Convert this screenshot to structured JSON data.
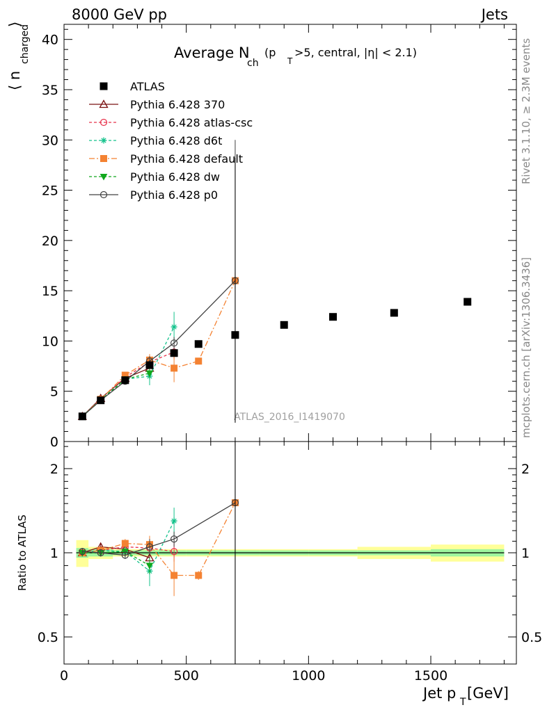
{
  "header": {
    "left": "8000 GeV pp",
    "right": "Jets"
  },
  "side_labels": {
    "rivet": "Rivet 3.1.10, ≥ 2.3M events",
    "mcplots": "mcplots.cern.ch [arXiv:1306.3436]"
  },
  "watermark": "ATLAS_2016_I1419070",
  "chart_data": {
    "type": "scatter",
    "title": {
      "main": "Average N",
      "sub": "ch",
      "rest_a": " (p",
      "sub2": "T",
      "rest_b": ">5, central, |η| < 2.1)"
    },
    "ylabel_main": {
      "main": "⟨ n",
      "sub": "charged",
      "tail": " ⟩"
    },
    "ylabel_ratio": "Ratio to ATLAS",
    "xlabel": {
      "main": "Jet p",
      "sub": "T",
      "tail": " [GeV]"
    },
    "xlim": [
      0,
      1850
    ],
    "ylim_main": [
      0,
      41.5
    ],
    "ylim_ratio": [
      0.4,
      2.5
    ],
    "ratio_log": true,
    "x_ticks": [
      0,
      500,
      1000,
      1500
    ],
    "y_ticks_main": [
      0,
      5,
      10,
      15,
      20,
      25,
      30,
      35,
      40
    ],
    "y_ticks_ratio": [
      0.5,
      1,
      2
    ],
    "data": {
      "name": "ATLAS",
      "x": [
        75,
        150,
        250,
        350,
        450,
        550,
        700,
        900,
        1100,
        1350,
        1650
      ],
      "xlo": [
        50,
        100,
        200,
        300,
        400,
        500,
        600,
        800,
        1000,
        1200,
        1500
      ],
      "xhi": [
        100,
        200,
        300,
        400,
        500,
        600,
        800,
        1000,
        1200,
        1500,
        1800
      ],
      "y": [
        2.5,
        4.1,
        6.1,
        7.6,
        8.8,
        9.7,
        10.6,
        11.6,
        12.4,
        12.8,
        13.9
      ],
      "ratio_stat": [
        0.04,
        0.03,
        0.02,
        0.02,
        0.02,
        0.02,
        0.02,
        0.02,
        0.02,
        0.02,
        0.03
      ],
      "ratio_tot": [
        0.11,
        0.05,
        0.03,
        0.03,
        0.03,
        0.03,
        0.03,
        0.03,
        0.03,
        0.05,
        0.07
      ]
    },
    "series": [
      {
        "name": "Pythia 6.428 370",
        "color": "#7a1010",
        "marker": "triangle-open",
        "dash": "",
        "x": [
          75,
          150,
          250,
          350
        ],
        "y": [
          2.5,
          4.3,
          6.3,
          7.3
        ],
        "err": [
          0.1,
          0.2,
          0.3,
          0.6
        ],
        "ratio": [
          1.0,
          1.05,
          1.03,
          0.96
        ],
        "ratio_err": [
          0.03,
          0.03,
          0.04,
          0.07
        ]
      },
      {
        "name": "Pythia 6.428 atlas-csc",
        "color": "#e8304a",
        "marker": "circle-open",
        "dash": "4,3",
        "x": [
          75,
          150,
          250,
          350,
          450
        ],
        "y": [
          2.5,
          4.2,
          6.4,
          7.9,
          8.9
        ],
        "err": [
          0.1,
          0.2,
          0.3,
          0.4,
          0.7
        ],
        "ratio": [
          1.0,
          1.02,
          1.05,
          1.04,
          1.01
        ],
        "ratio_err": [
          0.03,
          0.03,
          0.03,
          0.05,
          0.08
        ]
      },
      {
        "name": "Pythia 6.428 d6t",
        "color": "#14c28c",
        "marker": "star",
        "dash": "4,3",
        "x": [
          75,
          150,
          250,
          350,
          450
        ],
        "y": [
          2.5,
          4.2,
          6.2,
          6.5,
          11.4
        ],
        "err": [
          0.1,
          0.2,
          0.3,
          0.9,
          1.5
        ],
        "ratio": [
          1.0,
          1.02,
          1.01,
          0.86,
          1.3
        ],
        "ratio_err": [
          0.03,
          0.03,
          0.04,
          0.1,
          0.15
        ]
      },
      {
        "name": "Pythia 6.428 default",
        "color": "#f48232",
        "marker": "square",
        "dash": "8,3,2,3",
        "x": [
          75,
          150,
          250,
          350,
          450,
          550,
          700
        ],
        "y": [
          2.5,
          4.2,
          6.6,
          8.1,
          7.3,
          8.0,
          16.0
        ],
        "err": [
          0.1,
          0.2,
          0.3,
          0.6,
          1.4,
          0.3,
          0.8
        ],
        "ratio": [
          1.0,
          1.02,
          1.08,
          1.07,
          0.83,
          0.83,
          1.51
        ],
        "ratio_err": [
          0.03,
          0.03,
          0.04,
          0.08,
          0.13,
          0.03,
          0.05
        ]
      },
      {
        "name": "Pythia 6.428 dw",
        "color": "#10a81c",
        "marker": "triangle-down",
        "dash": "4,3",
        "x": [
          75,
          150,
          250,
          350
        ],
        "y": [
          2.5,
          4.1,
          6.2,
          6.8
        ],
        "err": [
          0.1,
          0.2,
          0.3,
          0.5
        ],
        "ratio": [
          1.0,
          1.0,
          1.01,
          0.9
        ],
        "ratio_err": [
          0.03,
          0.03,
          0.04,
          0.06
        ]
      },
      {
        "name": "Pythia 6.428 p0",
        "color": "#404040",
        "marker": "circle-open",
        "dash": "",
        "x": [
          75,
          150,
          250,
          350,
          450,
          700
        ],
        "y": [
          2.5,
          4.1,
          6.0,
          8.0,
          9.8,
          16.0
        ],
        "err": [
          0.1,
          0.2,
          0.3,
          0.5,
          0.6,
          14.0
        ],
        "ratio": [
          1.01,
          1.0,
          0.98,
          1.05,
          1.12,
          1.51
        ],
        "ratio_err": [
          0.03,
          0.03,
          0.03,
          0.07,
          0.07,
          1.3
        ]
      }
    ],
    "legend_position": "top-left",
    "grid": false
  }
}
